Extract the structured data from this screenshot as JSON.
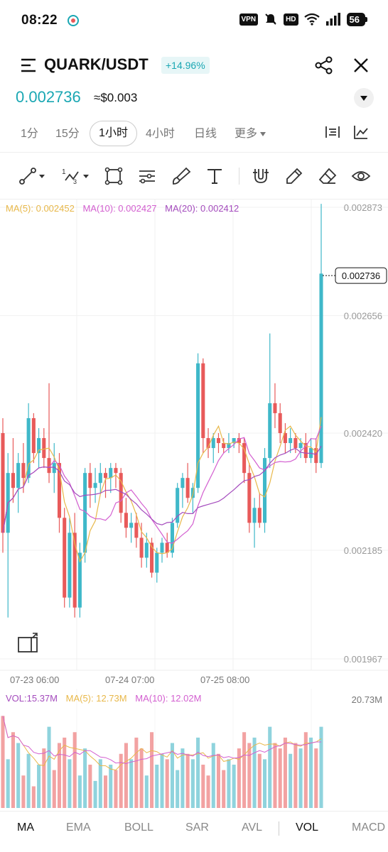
{
  "status": {
    "time": "08:22",
    "vpn": "VPN",
    "hd": "HD",
    "battery": "56"
  },
  "header": {
    "pair": "QUARK/USDT",
    "change": "+14.96%"
  },
  "price": {
    "last": "0.002736",
    "fiat": "≈$0.003"
  },
  "timeframes": [
    "1分",
    "15分",
    "1小时",
    "4小时",
    "日线",
    "更多"
  ],
  "active_timeframe": "1小时",
  "ma_legend": {
    "ma5": "MA(5): 0.002452",
    "ma10": "MA(10): 0.002427",
    "ma20": "MA(20): 0.002412"
  },
  "vol_legend": {
    "vol": "VOL:15.37M",
    "ma5": "MA(5): 12.73M",
    "ma10": "MA(10): 12.02M"
  },
  "indicators": [
    "MA",
    "EMA",
    "BOLL",
    "SAR",
    "AVL",
    "VOL",
    "MACD"
  ],
  "active_indicators": [
    "MA",
    "VOL"
  ],
  "colors": {
    "up": "#3fb8c9",
    "down": "#e85a5a",
    "ma5": "#e8b84a",
    "ma10": "#d35fd0",
    "ma20": "#a44bbd",
    "accent": "#1aa7b3"
  },
  "chart_data": {
    "type": "candlestick",
    "price_axis": [
      "0.002873",
      "0.002656",
      "0.002420",
      "0.002185",
      "0.001967"
    ],
    "ylim": [
      0.001967,
      0.002873
    ],
    "current_price_label": "0.002736",
    "time_labels": [
      "07-23 06:00",
      "07-24 07:00",
      "07-25 08:00"
    ],
    "volume_axis_max": "20.73M",
    "candles": [
      [
        0.00242,
        0.00245,
        0.00218,
        0.00222
      ],
      [
        0.00222,
        0.00238,
        0.00205,
        0.00234
      ],
      [
        0.00234,
        0.00241,
        0.00228,
        0.00231
      ],
      [
        0.00231,
        0.00238,
        0.00226,
        0.00236
      ],
      [
        0.00236,
        0.0024,
        0.0023,
        0.00233
      ],
      [
        0.00233,
        0.00248,
        0.00232,
        0.00245
      ],
      [
        0.00245,
        0.00246,
        0.00236,
        0.00238
      ],
      [
        0.00238,
        0.00243,
        0.00235,
        0.00241
      ],
      [
        0.00241,
        0.00243,
        0.00235,
        0.00237
      ],
      [
        0.00237,
        0.00252,
        0.00232,
        0.00234
      ],
      [
        0.00234,
        0.0024,
        0.0023,
        0.00236
      ],
      [
        0.00236,
        0.00238,
        0.00222,
        0.00225
      ],
      [
        0.00225,
        0.00227,
        0.00207,
        0.00209
      ],
      [
        0.00209,
        0.00225,
        0.00207,
        0.00222
      ],
      [
        0.00222,
        0.00226,
        0.00205,
        0.00207
      ],
      [
        0.00207,
        0.0022,
        0.00205,
        0.00218
      ],
      [
        0.00218,
        0.00235,
        0.00216,
        0.00234
      ],
      [
        0.00234,
        0.00236,
        0.00227,
        0.00231
      ],
      [
        0.00231,
        0.00235,
        0.00228,
        0.00232
      ],
      [
        0.00232,
        0.00236,
        0.0023,
        0.00234
      ],
      [
        0.00234,
        0.00235,
        0.00229,
        0.00233
      ],
      [
        0.00233,
        0.00236,
        0.0023,
        0.00235
      ],
      [
        0.00235,
        0.00236,
        0.00231,
        0.00234
      ],
      [
        0.00234,
        0.00235,
        0.00224,
        0.00226
      ],
      [
        0.00226,
        0.00229,
        0.00221,
        0.00223
      ],
      [
        0.00223,
        0.00226,
        0.0022,
        0.00224
      ],
      [
        0.00224,
        0.00226,
        0.00219,
        0.00221
      ],
      [
        0.00221,
        0.00224,
        0.00215,
        0.00217
      ],
      [
        0.00217,
        0.00222,
        0.00215,
        0.0022
      ],
      [
        0.0022,
        0.00221,
        0.00213,
        0.00214
      ],
      [
        0.00214,
        0.00219,
        0.00212,
        0.00218
      ],
      [
        0.00218,
        0.00221,
        0.00216,
        0.0022
      ],
      [
        0.0022,
        0.00222,
        0.00217,
        0.00218
      ],
      [
        0.00218,
        0.00225,
        0.00217,
        0.00224
      ],
      [
        0.00224,
        0.00232,
        0.00223,
        0.00231
      ],
      [
        0.00231,
        0.00234,
        0.00227,
        0.00233
      ],
      [
        0.00233,
        0.00236,
        0.00228,
        0.00229
      ],
      [
        0.00229,
        0.00232,
        0.00226,
        0.00231
      ],
      [
        0.00231,
        0.00258,
        0.0023,
        0.00256
      ],
      [
        0.00256,
        0.00257,
        0.00238,
        0.00241
      ],
      [
        0.00241,
        0.00243,
        0.00237,
        0.00239
      ],
      [
        0.00239,
        0.00242,
        0.00236,
        0.00241
      ],
      [
        0.00241,
        0.00242,
        0.00238,
        0.0024
      ],
      [
        0.0024,
        0.00241,
        0.00238,
        0.00239
      ],
      [
        0.00239,
        0.00242,
        0.00238,
        0.0024
      ],
      [
        0.0024,
        0.00241,
        0.00239,
        0.00241
      ],
      [
        0.00241,
        0.00242,
        0.00238,
        0.0024
      ],
      [
        0.0024,
        0.00241,
        0.00232,
        0.00234
      ],
      [
        0.00234,
        0.00236,
        0.00222,
        0.00224
      ],
      [
        0.00224,
        0.00229,
        0.00219,
        0.00227
      ],
      [
        0.00227,
        0.0023,
        0.00223,
        0.00224
      ],
      [
        0.00224,
        0.00239,
        0.00222,
        0.00237
      ],
      [
        0.00237,
        0.00262,
        0.00235,
        0.00248
      ],
      [
        0.00248,
        0.00252,
        0.00243,
        0.00246
      ],
      [
        0.00246,
        0.00248,
        0.0024,
        0.00242
      ],
      [
        0.00242,
        0.00244,
        0.00238,
        0.0024
      ],
      [
        0.0024,
        0.00243,
        0.00238,
        0.00241
      ],
      [
        0.00241,
        0.00242,
        0.00238,
        0.00239
      ],
      [
        0.00239,
        0.00241,
        0.00237,
        0.0024
      ],
      [
        0.0024,
        0.00242,
        0.00236,
        0.00237
      ],
      [
        0.00237,
        0.00241,
        0.00236,
        0.00239
      ],
      [
        0.00239,
        0.00241,
        0.00234,
        0.00236
      ],
      [
        0.00236,
        0.00288,
        0.00235,
        0.00274
      ]
    ],
    "volumes": [
      17,
      9,
      14,
      12,
      6,
      10,
      4,
      8,
      11,
      15,
      7,
      12,
      13,
      9,
      14,
      6,
      11,
      8,
      5,
      9,
      6,
      8,
      7,
      10,
      12,
      9,
      13,
      11,
      6,
      14,
      8,
      10,
      9,
      12,
      7,
      11,
      10,
      9,
      13,
      8,
      6,
      12,
      10,
      7,
      9,
      8,
      11,
      14,
      12,
      13,
      10,
      9,
      15,
      12,
      11,
      13,
      10,
      12,
      11,
      14,
      13,
      11,
      15
    ],
    "volume_up": [
      false,
      true,
      false,
      true,
      false,
      true,
      false,
      true,
      false,
      true,
      false,
      false,
      false,
      true,
      false,
      true,
      true,
      false,
      true,
      true,
      false,
      true,
      false,
      false,
      false,
      true,
      false,
      false,
      true,
      false,
      true,
      true,
      false,
      true,
      true,
      true,
      false,
      true,
      true,
      false,
      false,
      true,
      false,
      false,
      true,
      true,
      false,
      false,
      false,
      true,
      false,
      true,
      true,
      false,
      false,
      false,
      true,
      false,
      true,
      false,
      true,
      false,
      true
    ]
  }
}
